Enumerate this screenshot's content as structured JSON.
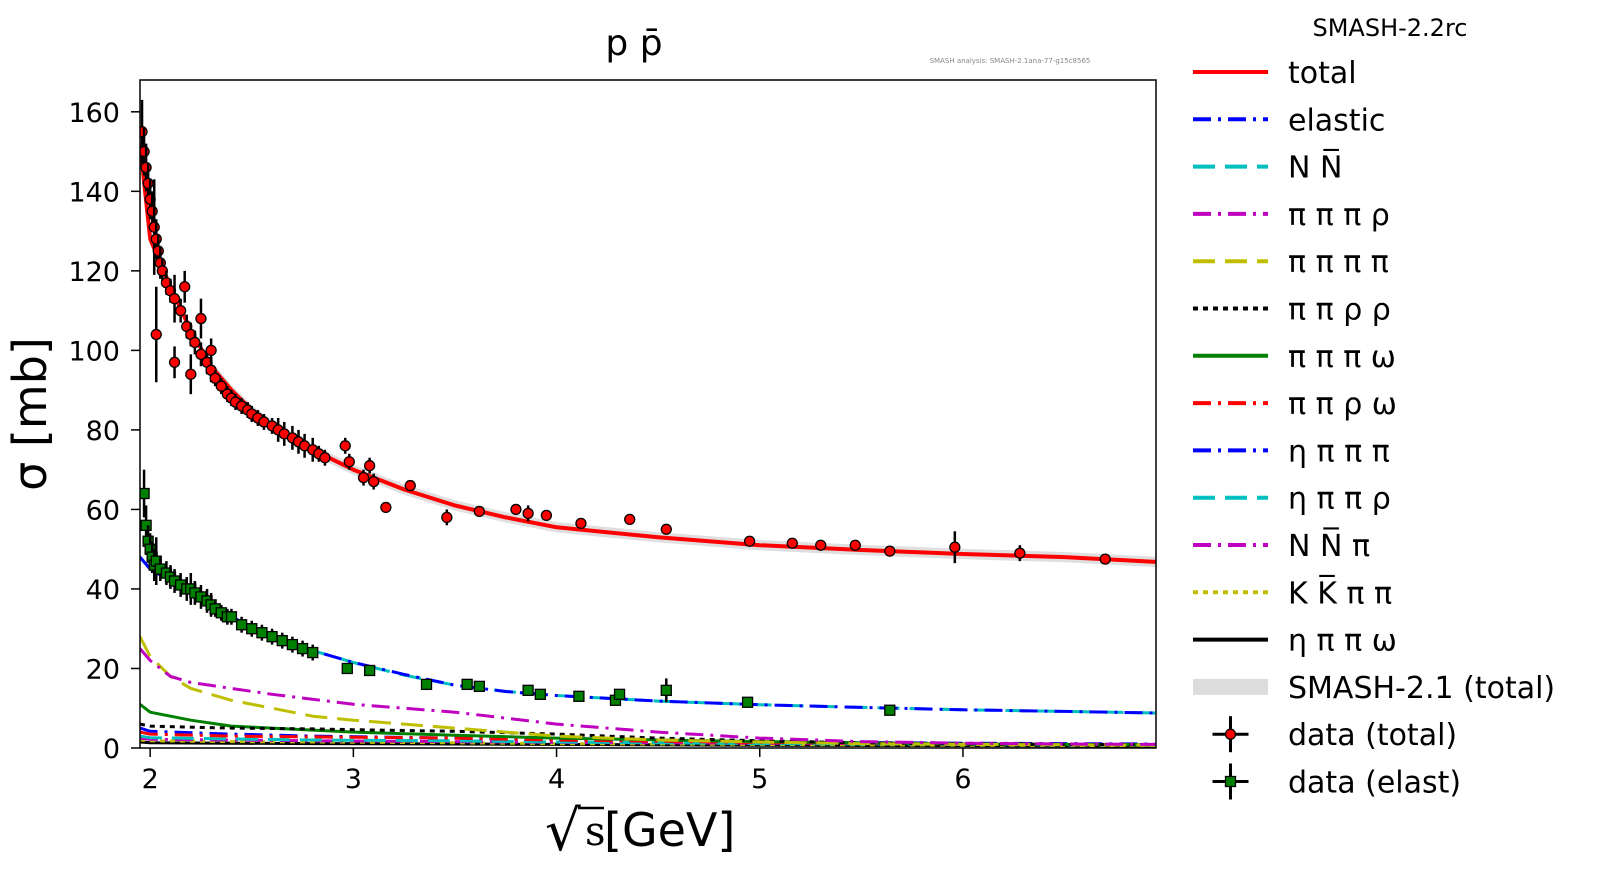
{
  "chart_data": {
    "type": "line",
    "title": "p p̄",
    "watermark": "SMASH analysis: SMASH-2.1ana-77-g15c8565",
    "legend_title": "SMASH-2.2rc",
    "xlabel": "√s [GeV]",
    "xlabel_root": "√",
    "xlabel_var": "s",
    "xlabel_unit": "[GeV]",
    "ylabel": "σ [mb]",
    "xlim": [
      1.95,
      6.95
    ],
    "ylim": [
      0,
      168
    ],
    "xticks": [
      2,
      3,
      4,
      5,
      6
    ],
    "yticks": [
      0,
      20,
      40,
      60,
      80,
      100,
      120,
      140,
      160
    ],
    "series": [
      {
        "name": "total",
        "color": "#ff0000",
        "dash": "solid",
        "width": 4,
        "x": [
          1.95,
          2.0,
          2.1,
          2.2,
          2.3,
          2.4,
          2.5,
          2.6,
          2.8,
          3.0,
          3.25,
          3.5,
          3.75,
          4.0,
          4.5,
          5.0,
          5.5,
          6.0,
          6.5,
          6.95
        ],
        "y": [
          152,
          128,
          116,
          105,
          96,
          90,
          85,
          81,
          75,
          70,
          65,
          61,
          58,
          55.5,
          53,
          51,
          49.8,
          48.8,
          48,
          46.8
        ]
      },
      {
        "name": "elastic",
        "color": "#0000ff",
        "dash": "dashdot",
        "width": 3,
        "x": [
          1.95,
          2.0,
          2.2,
          2.4,
          2.6,
          2.8,
          3.0,
          3.25,
          3.5,
          3.75,
          4.0,
          4.5,
          5.0,
          5.5,
          6.0,
          6.5,
          6.95
        ],
        "y": [
          48,
          45,
          39,
          33,
          28,
          24.5,
          21.5,
          18.5,
          15.8,
          14.2,
          13.2,
          11.8,
          10.9,
          10.2,
          9.6,
          9.2,
          8.8
        ]
      },
      {
        "name": "N N̅",
        "color": "#00bfbf",
        "dash": "longdash",
        "width": 3,
        "x": [
          1.95,
          2.0,
          2.2,
          2.4,
          2.6,
          2.8,
          3.0,
          3.25,
          3.5,
          3.75,
          4.0,
          4.5,
          5.0,
          5.5,
          6.0,
          6.5,
          6.95
        ],
        "y": [
          48,
          45,
          39,
          33,
          28,
          24.5,
          21.5,
          18.3,
          15.8,
          14.2,
          13.2,
          11.8,
          10.9,
          10.2,
          9.6,
          9.2,
          8.8
        ]
      },
      {
        "name": "π π π ρ",
        "color": "#bf00bf",
        "dash": "dashdot",
        "width": 3,
        "x": [
          1.95,
          2.0,
          2.1,
          2.2,
          2.4,
          2.6,
          3.0,
          3.5,
          4.0,
          4.5,
          5.0,
          5.5,
          6.0,
          6.5,
          6.95
        ],
        "y": [
          25,
          22,
          18,
          16.5,
          15,
          13.5,
          11,
          9,
          6,
          4,
          2.5,
          1.6,
          1.2,
          1.0,
          0.9
        ]
      },
      {
        "name": "π π π π",
        "color": "#bfbf00",
        "dash": "longdash",
        "width": 3,
        "x": [
          1.95,
          2.0,
          2.1,
          2.2,
          2.4,
          2.6,
          2.8,
          3.0,
          3.5,
          4.0,
          4.5,
          5.0,
          5.5,
          6.0,
          6.5,
          6.95
        ],
        "y": [
          28,
          23,
          18,
          15,
          12,
          10,
          8,
          7,
          5,
          3,
          2,
          1.5,
          1.1,
          0.9,
          0.8,
          0.7
        ]
      },
      {
        "name": "π π ρ ρ",
        "color": "#000000",
        "dash": "dotted",
        "width": 3,
        "x": [
          1.95,
          2.0,
          2.4,
          2.8,
          3.0,
          3.5,
          4.0,
          4.5,
          5.0,
          5.5,
          6.0,
          6.5,
          6.95
        ],
        "y": [
          6,
          5.5,
          5,
          4.8,
          4.6,
          4.2,
          3.5,
          2.5,
          1.8,
          1.3,
          1,
          0.9,
          0.8
        ]
      },
      {
        "name": "π π π ω",
        "color": "#008000",
        "dash": "solid",
        "width": 3,
        "x": [
          1.95,
          2.0,
          2.2,
          2.4,
          2.8,
          3.0,
          3.5,
          4.0,
          5.0,
          6.0,
          6.95
        ],
        "y": [
          11,
          9,
          7,
          5.5,
          4.5,
          4,
          3.2,
          2.5,
          1.6,
          1.0,
          0.8
        ]
      },
      {
        "name": "π π ρ ω",
        "color": "#ff0000",
        "dash": "dashdot",
        "width": 3,
        "x": [
          1.95,
          2.0,
          2.4,
          2.8,
          3.5,
          4.0,
          5.0,
          6.0,
          6.95
        ],
        "y": [
          4,
          3.5,
          3,
          2.8,
          2.5,
          2,
          1.4,
          1.0,
          0.8
        ]
      },
      {
        "name": "η π π π",
        "color": "#0000ff",
        "dash": "dashdot",
        "width": 3,
        "x": [
          1.95,
          2.0,
          2.4,
          2.8,
          3.5,
          4.0,
          5.0,
          6.0,
          6.95
        ],
        "y": [
          5,
          4.2,
          3.5,
          3,
          2.5,
          2,
          1.5,
          1.2,
          1.0
        ]
      },
      {
        "name": "η π π ρ",
        "color": "#00bfbf",
        "dash": "longdash",
        "width": 3,
        "x": [
          1.95,
          2.0,
          2.4,
          2.8,
          3.5,
          4.0,
          5.0,
          6.0,
          6.95
        ],
        "y": [
          3,
          2.6,
          2.3,
          2,
          1.8,
          1.5,
          1.1,
          0.9,
          0.7
        ]
      },
      {
        "name": "N N̅ π",
        "color": "#bf00bf",
        "dash": "dashdot",
        "width": 3,
        "x": [
          1.95,
          2.0,
          2.4,
          2.8,
          3.5,
          4.0,
          5.0,
          6.0,
          6.95
        ],
        "y": [
          2.5,
          2.2,
          2,
          1.8,
          1.6,
          1.4,
          1.2,
          1.0,
          0.9
        ]
      },
      {
        "name": "K K̅ π π",
        "color": "#bfbf00",
        "dash": "dotted",
        "width": 3,
        "x": [
          1.95,
          2.0,
          2.4,
          2.8,
          3.5,
          4.0,
          5.0,
          6.0,
          6.95
        ],
        "y": [
          2,
          1.8,
          1.6,
          1.5,
          1.3,
          1.1,
          0.9,
          0.7,
          0.6
        ]
      },
      {
        "name": "η π π ω",
        "color": "#000000",
        "dash": "solid",
        "width": 3,
        "x": [
          1.95,
          2.0,
          2.4,
          2.8,
          3.5,
          4.0,
          5.0,
          6.0,
          6.95
        ],
        "y": [
          1.5,
          1.3,
          1.2,
          1.1,
          1.0,
          0.9,
          0.7,
          0.6,
          0.5
        ]
      }
    ],
    "band": {
      "name": "SMASH-2.1 (total)",
      "color": "#dcdcdc",
      "x": [
        1.95,
        2.0,
        2.1,
        2.2,
        2.3,
        2.4,
        2.5,
        2.6,
        2.8,
        3.0,
        3.25,
        3.5,
        3.75,
        4.0,
        4.5,
        5.0,
        5.5,
        6.0,
        6.5,
        6.95
      ],
      "y": [
        152,
        128,
        116,
        105,
        96,
        90,
        85,
        81,
        75,
        70,
        65,
        61,
        58,
        55.5,
        53,
        51,
        49.8,
        48.8,
        48,
        46.8
      ]
    },
    "data_total": {
      "name": "data (total)",
      "color": "#ff0000",
      "x": [
        1.96,
        1.97,
        1.98,
        1.99,
        2.0,
        2.01,
        2.02,
        2.03,
        2.04,
        2.05,
        2.06,
        2.08,
        2.1,
        2.12,
        2.15,
        2.18,
        2.2,
        2.22,
        2.25,
        2.28,
        2.3,
        2.32,
        2.35,
        2.38,
        2.4,
        2.42,
        2.45,
        2.48,
        2.5,
        2.53,
        2.56,
        2.6,
        2.63,
        2.66,
        2.7,
        2.73,
        2.76,
        2.8,
        2.83,
        2.86,
        2.03,
        2.12,
        2.2,
        2.17,
        2.25,
        2.3,
        2.96,
        2.98,
        3.05,
        3.08,
        3.1,
        3.16,
        3.28,
        3.46,
        3.62,
        3.8,
        3.86,
        3.95,
        4.12,
        4.36,
        4.54,
        4.95,
        5.16,
        5.3,
        5.47,
        5.64,
        5.96,
        6.28,
        6.7
      ],
      "y": [
        155,
        150,
        146,
        142,
        138,
        135,
        131,
        128,
        125,
        122,
        120,
        117,
        115,
        113,
        110,
        106,
        104,
        102,
        99,
        97,
        95,
        93,
        91,
        89,
        88,
        87,
        86,
        85,
        84,
        83,
        82,
        81,
        80,
        79,
        78,
        77,
        76,
        75,
        74,
        73,
        104,
        97,
        94,
        116,
        108,
        100,
        76,
        72,
        68,
        71,
        67,
        60.5,
        66,
        58,
        59.5,
        60,
        59,
        58.5,
        56.5,
        57.5,
        55,
        52,
        51.5,
        51,
        51,
        49.5,
        50.5,
        49,
        47.5
      ],
      "err": [
        8,
        6,
        6,
        5,
        5,
        5,
        12,
        5,
        4,
        4,
        3,
        3,
        3,
        6,
        3,
        3,
        3,
        3,
        3,
        3,
        3,
        2,
        2,
        2,
        2,
        2,
        2,
        2,
        2,
        2,
        2,
        2,
        3,
        3,
        3,
        3,
        3,
        3,
        2,
        2,
        12,
        4,
        5,
        4,
        5,
        3,
        2,
        2,
        2,
        2,
        2,
        1,
        1,
        2,
        1,
        1,
        2,
        1,
        1,
        1,
        1,
        1,
        1,
        1,
        1,
        1,
        4,
        2,
        1
      ]
    },
    "data_elast": {
      "name": "data (elast)",
      "color": "#008000",
      "x": [
        1.97,
        1.98,
        1.99,
        2.0,
        2.01,
        2.02,
        2.03,
        2.05,
        2.08,
        2.1,
        2.12,
        2.15,
        2.18,
        2.2,
        2.22,
        2.25,
        2.28,
        2.3,
        2.32,
        2.35,
        2.38,
        2.4,
        2.45,
        2.5,
        2.55,
        2.6,
        2.65,
        2.7,
        2.75,
        2.8,
        2.97,
        3.08,
        3.36,
        3.56,
        3.62,
        3.86,
        3.92,
        4.11,
        4.29,
        4.31,
        4.54,
        4.94,
        5.64
      ],
      "y": [
        64,
        56,
        52,
        50,
        48,
        46,
        47,
        45,
        44,
        43,
        42,
        41,
        40,
        40,
        39,
        38,
        37,
        36,
        35,
        34,
        33,
        33,
        31,
        30,
        29,
        28,
        27,
        26,
        25,
        24,
        20,
        19.5,
        16,
        16,
        15.5,
        14.5,
        13.5,
        13,
        12,
        13.5,
        14.5,
        11.5,
        9.5
      ],
      "err": [
        6,
        5,
        4,
        4,
        4,
        4,
        6,
        3,
        3,
        3,
        3,
        3,
        3,
        4,
        3,
        3,
        3,
        3,
        2,
        2,
        2,
        2,
        2,
        2,
        2,
        2,
        2,
        2,
        2,
        2,
        1,
        1,
        1,
        1,
        1,
        1,
        1,
        1,
        1,
        1,
        3,
        1,
        1
      ]
    },
    "legend": [
      {
        "label": "total",
        "color": "#ff0000",
        "style": "solid"
      },
      {
        "label": "elastic",
        "color": "#0000ff",
        "style": "dashdot"
      },
      {
        "label": "N N̅",
        "color": "#00bfbf",
        "style": "longdash"
      },
      {
        "label": "π π π ρ",
        "color": "#bf00bf",
        "style": "dashdot"
      },
      {
        "label": "π π π π",
        "color": "#bfbf00",
        "style": "longdash"
      },
      {
        "label": "π π ρ ρ",
        "color": "#000000",
        "style": "dotted"
      },
      {
        "label": "π π π ω",
        "color": "#008000",
        "style": "solid"
      },
      {
        "label": "π π ρ ω",
        "color": "#ff0000",
        "style": "dashdot"
      },
      {
        "label": "η π π π",
        "color": "#0000ff",
        "style": "dashdot"
      },
      {
        "label": "η π π ρ",
        "color": "#00bfbf",
        "style": "longdash"
      },
      {
        "label": "N N̅ π",
        "color": "#bf00bf",
        "style": "dashdot"
      },
      {
        "label": "K K̅ π π",
        "color": "#bfbf00",
        "style": "dotted"
      },
      {
        "label": "η π π ω",
        "color": "#000000",
        "style": "solid"
      },
      {
        "label": "SMASH-2.1 (total)",
        "color": "#dcdcdc",
        "style": "band"
      },
      {
        "label": "data (total)",
        "color": "#ff0000",
        "style": "marker-circle"
      },
      {
        "label": "data (elast)",
        "color": "#008000",
        "style": "marker-square"
      }
    ],
    "legend_position": "outside-right",
    "grid": false
  }
}
